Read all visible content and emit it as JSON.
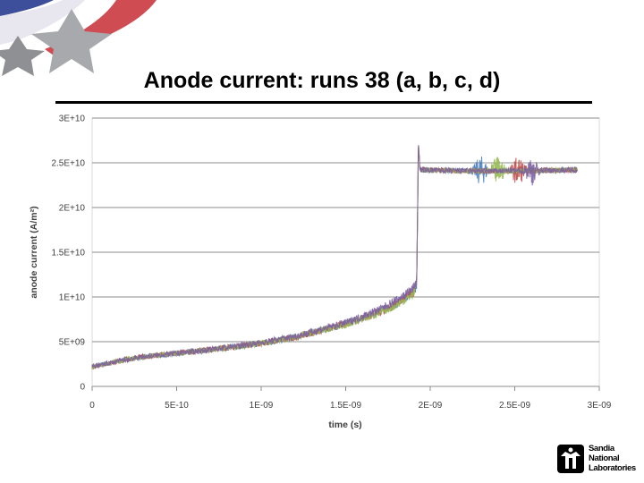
{
  "slide": {
    "title": "Anode current: runs 38 (a, b, c, d)",
    "logo_org": "Sandia National Laboratories",
    "logo_lines": [
      "Sandia",
      "National",
      "Laboratories"
    ]
  },
  "chart_data": {
    "type": "line",
    "title": "",
    "xlabel": "time (s)",
    "ylabel": "anode current (A/m²)",
    "xlim": [
      0,
      3e-09
    ],
    "ylim": [
      0,
      30000000000.0
    ],
    "x_ticks": [
      "0",
      "5E-10",
      "1E-09",
      "1.5E-09",
      "2E-09",
      "2.5E-09",
      "3E-09"
    ],
    "y_ticks": [
      "0",
      "5E+09",
      "1E+10",
      "1.5E+10",
      "2E+10",
      "2.5E+10",
      "3E+10"
    ],
    "grid": "horizontal",
    "legend": "none",
    "x": [
      0,
      1e-10,
      2e-10,
      3e-10,
      5e-10,
      7e-10,
      1e-09,
      1.2e-09,
      1.5e-09,
      1.7e-09,
      1.8e-09,
      1.9e-09,
      1.92e-09,
      1.93e-09,
      1.94e-09,
      2.2e-09,
      2.5e-09,
      2.87e-09
    ],
    "series": [
      {
        "color": "#4a7ebb",
        "values": [
          2200000000.0,
          2600000000.0,
          3000000000.0,
          3300000000.0,
          3700000000.0,
          4100000000.0,
          4800000000.0,
          5500000000.0,
          7000000000.0,
          8400000000.0,
          9300000000.0,
          10600000000.0,
          11200000000.0,
          26500000000.0,
          24200000000.0,
          24100000000.0,
          24100000000.0,
          24200000000.0
        ],
        "burst_at": 2.3e-09
      },
      {
        "color": "#be4b48",
        "values": [
          2200000000.0,
          2600000000.0,
          3000000000.0,
          3300000000.0,
          3700000000.0,
          4100000000.0,
          4800000000.0,
          5500000000.0,
          7000000000.0,
          8300000000.0,
          9200000000.0,
          10500000000.0,
          11300000000.0,
          27000000000.0,
          24200000000.0,
          24100000000.0,
          24100000000.0,
          24200000000.0
        ],
        "burst_at": 2.52e-09
      },
      {
        "color": "#98b954",
        "values": [
          2200000000.0,
          2600000000.0,
          3000000000.0,
          3300000000.0,
          3700000000.0,
          4100000000.0,
          4800000000.0,
          5500000000.0,
          6900000000.0,
          8200000000.0,
          9100000000.0,
          10300000000.0,
          11600000000.0,
          27000000000.0,
          24200000000.0,
          24100000000.0,
          24100000000.0,
          24200000000.0
        ],
        "burst_at": 2.4e-09
      },
      {
        "color": "#7d60a0",
        "values": [
          2200000000.0,
          2600000000.0,
          3000000000.0,
          3300000000.0,
          3700000000.0,
          4100000000.0,
          4900000000.0,
          5600000000.0,
          7100000000.0,
          8600000000.0,
          9600000000.0,
          11000000000.0,
          11800000000.0,
          27300000000.0,
          24200000000.0,
          24100000000.0,
          24100000000.0,
          24200000000.0
        ],
        "burst_at": 2.6e-09
      }
    ]
  }
}
